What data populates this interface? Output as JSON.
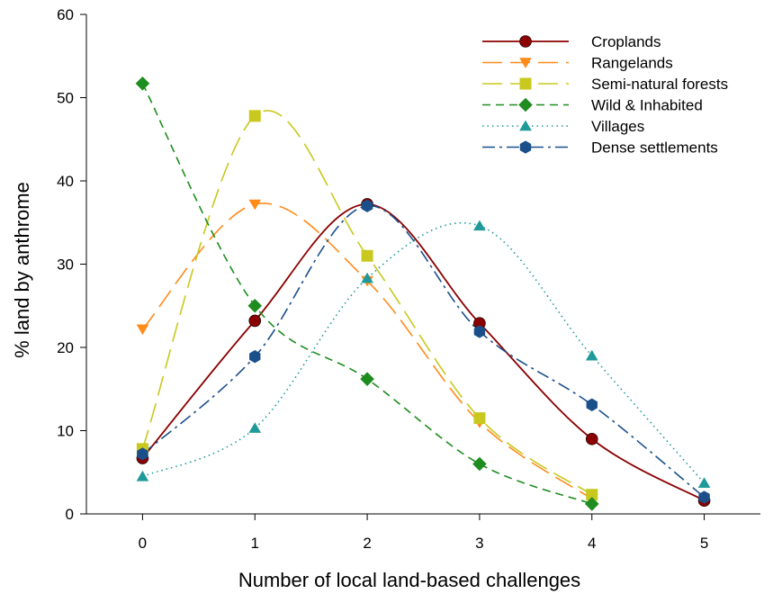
{
  "chart_data": {
    "type": "line",
    "xlabel": "Number of local land-based challenges",
    "ylabel": "% land by anthrome",
    "xlim": [
      -0.5,
      5.5
    ],
    "ylim": [
      0,
      60
    ],
    "xticks": [
      "0",
      "1",
      "2",
      "3",
      "4",
      "5"
    ],
    "yticks": [
      "0",
      "10",
      "20",
      "30",
      "40",
      "50",
      "60"
    ],
    "grid": false,
    "legend_position": "top-right",
    "series": [
      {
        "name": "Croplands",
        "color": "#8b0000",
        "marker": "circle",
        "dash": "solid",
        "x": [
          0,
          1,
          2,
          3,
          4,
          5
        ],
        "y": [
          6.7,
          23.2,
          37.2,
          22.9,
          9.0,
          1.6
        ]
      },
      {
        "name": "Rangelands",
        "color": "#ff8c1a",
        "marker": "triangle-down",
        "dash": "long-dash",
        "x": [
          0,
          1,
          2,
          3,
          4
        ],
        "y": [
          22.2,
          37.2,
          28.0,
          11.0,
          1.8
        ]
      },
      {
        "name": "Semi-natural forests",
        "color": "#c8c81e",
        "marker": "square",
        "dash": "long-dash",
        "x": [
          0,
          1,
          2,
          3,
          4
        ],
        "y": [
          7.8,
          47.8,
          31.0,
          11.5,
          2.3
        ]
      },
      {
        "name": "Wild & Inhabited",
        "color": "#1e8c1e",
        "marker": "diamond",
        "dash": "dash",
        "x": [
          0,
          1,
          2,
          3,
          4
        ],
        "y": [
          51.7,
          25.0,
          16.2,
          6.0,
          1.2
        ]
      },
      {
        "name": "Villages",
        "color": "#1f9a9a",
        "marker": "triangle-up",
        "dash": "dot",
        "x": [
          0,
          1,
          2,
          3,
          4,
          5
        ],
        "y": [
          4.5,
          10.3,
          28.3,
          34.6,
          19.0,
          3.7
        ]
      },
      {
        "name": "Dense settlements",
        "color": "#1a4f8a",
        "marker": "hexagon",
        "dash": "dash-dot",
        "x": [
          0,
          1,
          2,
          3,
          4,
          5
        ],
        "y": [
          7.2,
          18.9,
          37.0,
          21.9,
          13.1,
          2.0
        ]
      }
    ]
  }
}
